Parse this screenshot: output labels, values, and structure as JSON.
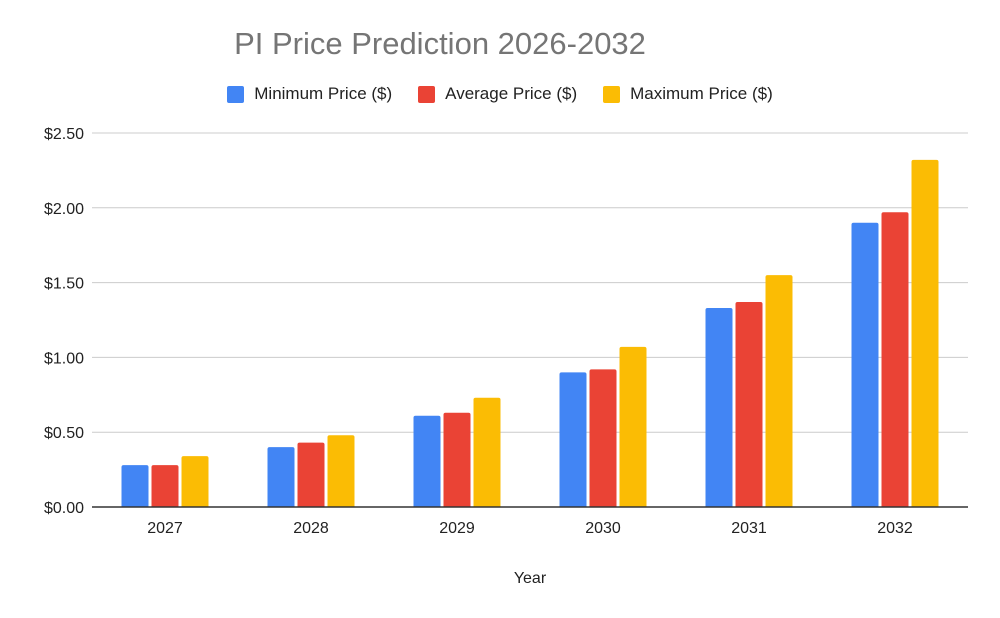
{
  "chart_data": {
    "type": "bar",
    "title": "PI Price Prediction 2026-2032",
    "xlabel": "Year",
    "ylabel": "",
    "categories": [
      "2027",
      "2028",
      "2029",
      "2030",
      "2031",
      "2032"
    ],
    "series": [
      {
        "name": "Minimum Price ($)",
        "color": "#4285F4",
        "values": [
          0.28,
          0.4,
          0.61,
          0.9,
          1.33,
          1.9
        ]
      },
      {
        "name": "Average Price ($)",
        "color": "#EA4335",
        "values": [
          0.28,
          0.43,
          0.63,
          0.92,
          1.37,
          1.97
        ]
      },
      {
        "name": "Maximum Price ($)",
        "color": "#FBBC04",
        "values": [
          0.34,
          0.48,
          0.73,
          1.07,
          1.55,
          2.32
        ]
      }
    ],
    "ylim": [
      0,
      2.5
    ],
    "yticks": [
      "$0.00",
      "$0.50",
      "$1.00",
      "$1.50",
      "$2.00",
      "$2.50"
    ],
    "grid": true,
    "legend_position": "top"
  }
}
